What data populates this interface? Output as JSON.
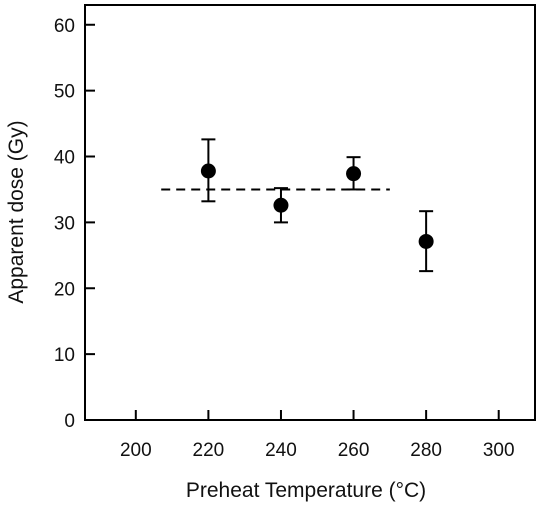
{
  "chart_data": {
    "type": "scatter",
    "title": "",
    "xlabel": "Preheat Temperature (°C)",
    "ylabel": "Apparent dose (Gy)",
    "xlim": [
      186,
      310
    ],
    "ylim": [
      0,
      63
    ],
    "xticks": [
      200,
      220,
      240,
      260,
      280,
      300
    ],
    "yticks": [
      0,
      10,
      20,
      30,
      40,
      50,
      60
    ],
    "grid": false,
    "series": [
      {
        "points": [
          {
            "x": 220,
            "y": 37.8,
            "err_low": 33.2,
            "err_high": 42.6
          },
          {
            "x": 240,
            "y": 32.6,
            "err_low": 30.0,
            "err_high": 35.2
          },
          {
            "x": 260,
            "y": 37.4,
            "err_low": 35.0,
            "err_high": 39.9
          },
          {
            "x": 280,
            "y": 27.1,
            "err_low": 22.6,
            "err_high": 31.7
          }
        ]
      }
    ],
    "reference_line": {
      "y": 35.0,
      "x_start": 207,
      "x_end": 270,
      "style": "dashed"
    }
  }
}
